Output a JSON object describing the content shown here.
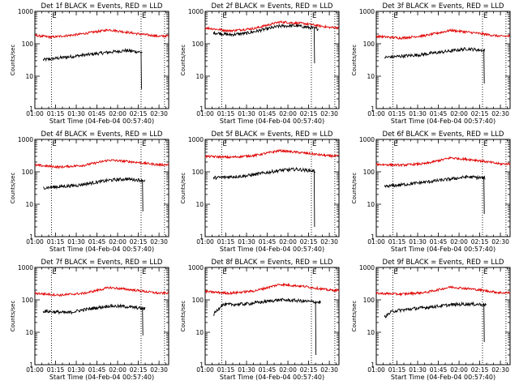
{
  "colors": {
    "events": "#000000",
    "lld": "#e00000",
    "background": "#ffffff"
  },
  "chart_data": [
    {
      "type": "line",
      "title": "Det 1f BLACK = Events, RED = LLD",
      "xlabel": "Start Time (04-Feb-04 00:57:40)",
      "ylabel": "Counts/sec",
      "yscale": "log",
      "ylim": [
        1,
        1000
      ],
      "x_tick_labels": [
        "01:00",
        "01:15",
        "01:30",
        "01:45",
        "02:00",
        "02:15",
        "02:30"
      ],
      "y_tick_labels": [
        "1",
        "10",
        "100",
        "1000"
      ],
      "markers": [
        {
          "label": "E",
          "x": "01:12"
        },
        {
          "label": "E",
          "x": "02:17"
        }
      ],
      "series": [
        {
          "name": "Events",
          "color": "black",
          "start": "01:06",
          "end": "02:18",
          "values": [
            [
              66,
              32
            ],
            [
              90,
              42
            ],
            [
              114,
              55
            ],
            [
              126,
              62
            ],
            [
              150,
              48
            ],
            [
              174,
              40
            ],
            [
              186,
              45
            ]
          ],
          "dropout": {
            "x": 137,
            "to": 4
          }
        },
        {
          "name": "LLD",
          "color": "red",
          "start": "01:00",
          "end": "02:37",
          "values": [
            [
              60,
              180
            ],
            [
              72,
              160
            ],
            [
              90,
              190
            ],
            [
              114,
              270
            ],
            [
              132,
              210
            ],
            [
              150,
              170
            ],
            [
              174,
              190
            ],
            [
              198,
              185
            ]
          ]
        }
      ]
    },
    {
      "type": "line",
      "title": "Det 2f BLACK = Events, RED = LLD",
      "xlabel": "Start Time (04-Feb-04 00:57:40)",
      "ylabel": "Counts/sec",
      "yscale": "log",
      "ylim": [
        1,
        1000
      ],
      "x_tick_labels": [
        "01:00",
        "01:15",
        "01:30",
        "01:45",
        "02:00",
        "02:15",
        "02:30"
      ],
      "y_tick_labels": [
        "1",
        "10",
        "100",
        "1000"
      ],
      "markers": [
        {
          "label": "E",
          "x": "01:12"
        },
        {
          "label": "E",
          "x": "02:17"
        }
      ],
      "series": [
        {
          "name": "Events",
          "color": "black",
          "start": "01:06",
          "end": "02:22",
          "values": [
            [
              66,
              220
            ],
            [
              78,
              190
            ],
            [
              90,
              210
            ],
            [
              114,
              350
            ],
            [
              126,
              360
            ],
            [
              150,
              260
            ],
            [
              174,
              230
            ],
            [
              190,
              210
            ]
          ],
          "dropout": {
            "x": 139,
            "to": 25
          }
        },
        {
          "name": "LLD",
          "color": "red",
          "start": "01:00",
          "end": "02:37",
          "values": [
            [
              60,
              310
            ],
            [
              78,
              250
            ],
            [
              96,
              300
            ],
            [
              114,
              470
            ],
            [
              132,
              420
            ],
            [
              150,
              320
            ],
            [
              174,
              300
            ],
            [
              198,
              340
            ]
          ]
        }
      ]
    },
    {
      "type": "line",
      "title": "Det 3f BLACK = Events, RED = LLD",
      "xlabel": "Start Time (04-Feb-04 00:57:40)",
      "ylabel": "Counts/sec",
      "yscale": "log",
      "ylim": [
        1,
        1000
      ],
      "x_tick_labels": [
        "01:00",
        "01:15",
        "01:30",
        "01:45",
        "02:00",
        "02:15",
        "02:30"
      ],
      "y_tick_labels": [
        "1",
        "10",
        "100",
        "1000"
      ],
      "markers": [
        {
          "label": "E",
          "x": "01:12"
        },
        {
          "label": "E",
          "x": "02:17"
        }
      ],
      "series": [
        {
          "name": "Events",
          "color": "black",
          "start": "01:06",
          "end": "02:19",
          "values": [
            [
              66,
              38
            ],
            [
              90,
              45
            ],
            [
              114,
              60
            ],
            [
              126,
              70
            ],
            [
              150,
              55
            ],
            [
              174,
              48
            ],
            [
              187,
              52
            ]
          ],
          "dropout": {
            "x": 138,
            "to": 6
          }
        },
        {
          "name": "LLD",
          "color": "red",
          "start": "01:00",
          "end": "02:37",
          "values": [
            [
              60,
              170
            ],
            [
              78,
              150
            ],
            [
              96,
              180
            ],
            [
              114,
              260
            ],
            [
              132,
              215
            ],
            [
              150,
              170
            ],
            [
              174,
              180
            ],
            [
              198,
              175
            ]
          ]
        }
      ]
    },
    {
      "type": "line",
      "title": "Det 4f BLACK = Events, RED = LLD",
      "xlabel": "Start Time (04-Feb-04 00:57:40)",
      "ylabel": "Counts/sec",
      "yscale": "log",
      "ylim": [
        1,
        1000
      ],
      "x_tick_labels": [
        "01:00",
        "01:15",
        "01:30",
        "01:45",
        "02:00",
        "02:15",
        "02:30"
      ],
      "y_tick_labels": [
        "1",
        "10",
        "100",
        "1000"
      ],
      "markers": [
        {
          "label": "E",
          "x": "01:12"
        },
        {
          "label": "E",
          "x": "02:17"
        }
      ],
      "series": [
        {
          "name": "Events",
          "color": "black",
          "start": "01:06",
          "end": "02:20",
          "values": [
            [
              66,
              32
            ],
            [
              90,
              38
            ],
            [
              114,
              55
            ],
            [
              126,
              60
            ],
            [
              150,
              50
            ],
            [
              174,
              42
            ],
            [
              188,
              45
            ]
          ],
          "dropout": {
            "x": 138,
            "to": 6
          }
        },
        {
          "name": "LLD",
          "color": "red",
          "start": "01:00",
          "end": "02:37",
          "values": [
            [
              60,
              160
            ],
            [
              78,
              140
            ],
            [
              96,
              160
            ],
            [
              114,
              230
            ],
            [
              132,
              200
            ],
            [
              150,
              165
            ],
            [
              174,
              170
            ],
            [
              198,
              170
            ]
          ]
        }
      ]
    },
    {
      "type": "line",
      "title": "Det 5f BLACK = Events, RED = LLD",
      "xlabel": "Start Time (04-Feb-04 00:57:40)",
      "ylabel": "Counts/sec",
      "yscale": "log",
      "ylim": [
        1,
        1000
      ],
      "x_tick_labels": [
        "01:00",
        "01:15",
        "01:30",
        "01:45",
        "02:00",
        "02:15",
        "02:30"
      ],
      "y_tick_labels": [
        "1",
        "10",
        "100",
        "1000"
      ],
      "markers": [
        {
          "label": "E",
          "x": "01:12"
        },
        {
          "label": "E",
          "x": "02:17"
        }
      ],
      "series": [
        {
          "name": "Events",
          "color": "black",
          "start": "01:06",
          "end": "02:20",
          "values": [
            [
              66,
              65
            ],
            [
              90,
              75
            ],
            [
              114,
              110
            ],
            [
              126,
              120
            ],
            [
              150,
              95
            ],
            [
              174,
              80
            ],
            [
              188,
              85
            ]
          ],
          "dropout": {
            "x": 139,
            "to": 2
          }
        },
        {
          "name": "LLD",
          "color": "red",
          "start": "01:00",
          "end": "02:37",
          "values": [
            [
              60,
              300
            ],
            [
              78,
              280
            ],
            [
              96,
              320
            ],
            [
              114,
              450
            ],
            [
              132,
              380
            ],
            [
              150,
              310
            ],
            [
              174,
              300
            ],
            [
              198,
              320
            ]
          ]
        }
      ]
    },
    {
      "type": "line",
      "title": "Det 6f BLACK = Events, RED = LLD",
      "xlabel": "Start Time (04-Feb-04 00:57:40)",
      "ylabel": "Counts/sec",
      "yscale": "log",
      "ylim": [
        1,
        1000
      ],
      "x_tick_labels": [
        "01:00",
        "01:15",
        "01:30",
        "01:45",
        "02:00",
        "02:15",
        "02:30"
      ],
      "y_tick_labels": [
        "1",
        "10",
        "100",
        "1000"
      ],
      "markers": [
        {
          "label": "E",
          "x": "01:12"
        },
        {
          "label": "E",
          "x": "02:17"
        }
      ],
      "series": [
        {
          "name": "Events",
          "color": "black",
          "start": "01:06",
          "end": "02:19",
          "values": [
            [
              66,
              35
            ],
            [
              90,
              45
            ],
            [
              114,
              60
            ],
            [
              126,
              70
            ],
            [
              150,
              60
            ],
            [
              174,
              55
            ],
            [
              187,
              60
            ]
          ],
          "dropout": {
            "x": 138,
            "to": 5
          }
        },
        {
          "name": "LLD",
          "color": "red",
          "start": "01:00",
          "end": "02:37",
          "values": [
            [
              60,
              170
            ],
            [
              78,
              160
            ],
            [
              96,
              180
            ],
            [
              114,
              270
            ],
            [
              132,
              230
            ],
            [
              150,
              175
            ],
            [
              174,
              180
            ],
            [
              198,
              170
            ]
          ]
        }
      ]
    },
    {
      "type": "line",
      "title": "Det 7f BLACK = Events, RED = LLD",
      "xlabel": "Start Time (04-Feb-04 00:57:40)",
      "ylabel": "Counts/sec",
      "yscale": "log",
      "ylim": [
        1,
        1000
      ],
      "x_tick_labels": [
        "01:00",
        "01:15",
        "01:30",
        "01:45",
        "02:00",
        "02:15",
        "02:30"
      ],
      "y_tick_labels": [
        "1",
        "10",
        "100",
        "1000"
      ],
      "markers": [
        {
          "label": "E",
          "x": "01:12"
        },
        {
          "label": "E",
          "x": "02:17"
        }
      ],
      "series": [
        {
          "name": "Events",
          "color": "black",
          "start": "01:06",
          "end": "02:20",
          "values": [
            [
              66,
              45
            ],
            [
              84,
              40
            ],
            [
              96,
              50
            ],
            [
              114,
              65
            ],
            [
              126,
              62
            ],
            [
              150,
              48
            ],
            [
              174,
              42
            ],
            [
              188,
              48
            ]
          ],
          "dropout": {
            "x": 138,
            "to": 8
          }
        },
        {
          "name": "LLD",
          "color": "red",
          "start": "01:00",
          "end": "02:37",
          "values": [
            [
              60,
              160
            ],
            [
              78,
              140
            ],
            [
              96,
              160
            ],
            [
              114,
              240
            ],
            [
              132,
              200
            ],
            [
              150,
              160
            ],
            [
              174,
              170
            ],
            [
              198,
              165
            ]
          ]
        }
      ]
    },
    {
      "type": "line",
      "title": "Det 8f BLACK = Events, RED = LLD",
      "xlabel": "Start Time (04-Feb-04 00:57:40)",
      "ylabel": "Counts/sec",
      "yscale": "log",
      "ylim": [
        1,
        1000
      ],
      "x_tick_labels": [
        "01:00",
        "01:15",
        "01:30",
        "01:45",
        "02:00",
        "02:15",
        "02:30"
      ],
      "y_tick_labels": [
        "1",
        "10",
        "100",
        "1000"
      ],
      "markers": [
        {
          "label": "E",
          "x": "01:12"
        },
        {
          "label": "E",
          "x": "02:17"
        }
      ],
      "series": [
        {
          "name": "Events",
          "color": "black",
          "start": "01:06",
          "end": "02:24",
          "values": [
            [
              66,
              35
            ],
            [
              72,
              70
            ],
            [
              90,
              75
            ],
            [
              114,
              100
            ],
            [
              126,
              95
            ],
            [
              150,
              80
            ],
            [
              174,
              72
            ],
            [
              188,
              70
            ],
            [
              192,
              20
            ]
          ],
          "dropout": {
            "x": 140,
            "to": 2
          }
        },
        {
          "name": "LLD",
          "color": "red",
          "start": "01:00",
          "end": "02:37",
          "values": [
            [
              60,
              180
            ],
            [
              78,
              160
            ],
            [
              96,
              190
            ],
            [
              114,
              300
            ],
            [
              132,
              260
            ],
            [
              150,
              200
            ],
            [
              174,
              190
            ],
            [
              190,
              150
            ],
            [
              198,
              170
            ]
          ]
        }
      ]
    },
    {
      "type": "line",
      "title": "Det 9f BLACK = Events, RED = LLD",
      "xlabel": "Start Time (04-Feb-04 00:57:40)",
      "ylabel": "Counts/sec",
      "yscale": "log",
      "ylim": [
        1,
        1000
      ],
      "x_tick_labels": [
        "01:00",
        "01:15",
        "01:30",
        "01:45",
        "02:00",
        "02:15",
        "02:30"
      ],
      "y_tick_labels": [
        "1",
        "10",
        "100",
        "1000"
      ],
      "markers": [
        {
          "label": "E",
          "x": "01:12"
        },
        {
          "label": "E",
          "x": "02:17"
        }
      ],
      "series": [
        {
          "name": "Events",
          "color": "black",
          "start": "01:06",
          "end": "02:20",
          "values": [
            [
              66,
              30
            ],
            [
              72,
              45
            ],
            [
              90,
              55
            ],
            [
              114,
              70
            ],
            [
              126,
              75
            ],
            [
              150,
              68
            ],
            [
              174,
              65
            ],
            [
              188,
              70
            ]
          ],
          "dropout": {
            "x": 138,
            "to": 5
          }
        },
        {
          "name": "LLD",
          "color": "red",
          "start": "01:00",
          "end": "02:37",
          "values": [
            [
              60,
              160
            ],
            [
              78,
              150
            ],
            [
              96,
              170
            ],
            [
              114,
              250
            ],
            [
              132,
              210
            ],
            [
              150,
              165
            ],
            [
              174,
              170
            ],
            [
              198,
              160
            ]
          ]
        }
      ]
    }
  ]
}
